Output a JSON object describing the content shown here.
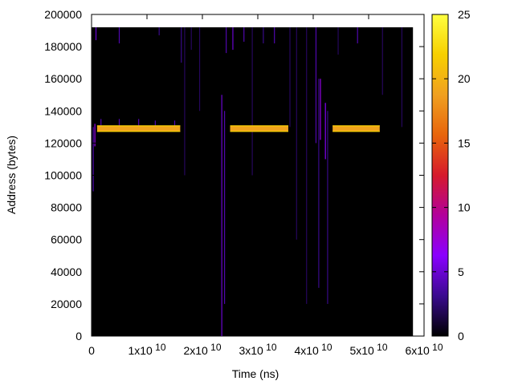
{
  "chart_data": {
    "type": "heatmap",
    "title": "",
    "xlabel": "Time (ns)",
    "ylabel": "Address (bytes)",
    "xlim": [
      0,
      60000000000
    ],
    "ylim": [
      0,
      200000
    ],
    "x_ticks": [
      {
        "value": 0,
        "base": "0",
        "exp": ""
      },
      {
        "value": 10000000000,
        "base": "1x10",
        "exp": "10"
      },
      {
        "value": 20000000000,
        "base": "2x10",
        "exp": "10"
      },
      {
        "value": 30000000000,
        "base": "3x10",
        "exp": "10"
      },
      {
        "value": 40000000000,
        "base": "4x10",
        "exp": "10"
      },
      {
        "value": 50000000000,
        "base": "5x10",
        "exp": "10"
      },
      {
        "value": 60000000000,
        "base": "6x10",
        "exp": "10"
      }
    ],
    "y_ticks": [
      {
        "value": 0,
        "label": "0"
      },
      {
        "value": 20000,
        "label": "20000"
      },
      {
        "value": 40000,
        "label": "40000"
      },
      {
        "value": 60000,
        "label": "60000"
      },
      {
        "value": 80000,
        "label": "80000"
      },
      {
        "value": 100000,
        "label": "100000"
      },
      {
        "value": 120000,
        "label": "120000"
      },
      {
        "value": 140000,
        "label": "140000"
      },
      {
        "value": 160000,
        "label": "160000"
      },
      {
        "value": 180000,
        "label": "180000"
      },
      {
        "value": 200000,
        "label": "200000"
      }
    ],
    "colorbar": {
      "range": [
        0,
        25
      ],
      "ticks": [
        {
          "value": 0,
          "label": "0"
        },
        {
          "value": 5,
          "label": "5"
        },
        {
          "value": 10,
          "label": "10"
        },
        {
          "value": 15,
          "label": "15"
        },
        {
          "value": 20,
          "label": "20"
        },
        {
          "value": 25,
          "label": "25"
        }
      ],
      "palette": [
        "#000000",
        "#3a0a8f",
        "#8a00ff",
        "#b2009c",
        "#d61a2c",
        "#e8650c",
        "#f0a020",
        "#f7d000",
        "#ffff40"
      ]
    },
    "heatmap_extent": {
      "x": [
        0,
        58000000000
      ],
      "y": [
        0,
        192000
      ]
    },
    "background_value": 0,
    "bands": [
      {
        "x": [
          1000000000,
          16000000000
        ],
        "y": [
          127000,
          131000
        ],
        "value": 19
      },
      {
        "x": [
          25000000000,
          35500000000
        ],
        "y": [
          127000,
          131000
        ],
        "value": 19
      },
      {
        "x": [
          43500000000,
          52000000000
        ],
        "y": [
          127000,
          131000
        ],
        "value": 19
      }
    ],
    "streaks": [
      {
        "x": 600000000,
        "y": [
          118000,
          132000
        ],
        "value": 7
      },
      {
        "x": 300000000,
        "y": [
          90000,
          130000
        ],
        "value": 4
      },
      {
        "x": 800000000,
        "y": [
          184000,
          192000
        ],
        "value": 5
      },
      {
        "x": 1700000000,
        "y": [
          128000,
          135000
        ],
        "value": 4
      },
      {
        "x": 5000000000,
        "y": [
          128000,
          135000
        ],
        "value": 4
      },
      {
        "x": 5000000000,
        "y": [
          182000,
          192000
        ],
        "value": 4
      },
      {
        "x": 8500000000,
        "y": [
          128000,
          135000
        ],
        "value": 4
      },
      {
        "x": 11500000000,
        "y": [
          129000,
          134000
        ],
        "value": 4
      },
      {
        "x": 12200000000,
        "y": [
          187000,
          192000
        ],
        "value": 3
      },
      {
        "x": 15000000000,
        "y": [
          128000,
          134000
        ],
        "value": 4
      },
      {
        "x": 16200000000,
        "y": [
          170000,
          192000
        ],
        "value": 3
      },
      {
        "x": 16800000000,
        "y": [
          100000,
          192000
        ],
        "value": 2
      },
      {
        "x": 18000000000,
        "y": [
          178000,
          192000
        ],
        "value": 2
      },
      {
        "x": 19500000000,
        "y": [
          140000,
          192000
        ],
        "value": 2
      },
      {
        "x": 23500000000,
        "y": [
          0,
          150000
        ],
        "value": 5
      },
      {
        "x": 24000000000,
        "y": [
          20000,
          140000
        ],
        "value": 4
      },
      {
        "x": 24300000000,
        "y": [
          176000,
          192000
        ],
        "value": 4
      },
      {
        "x": 25500000000,
        "y": [
          178000,
          192000
        ],
        "value": 5
      },
      {
        "x": 27500000000,
        "y": [
          183000,
          192000
        ],
        "value": 4
      },
      {
        "x": 29000000000,
        "y": [
          100000,
          192000
        ],
        "value": 2
      },
      {
        "x": 31000000000,
        "y": [
          182000,
          192000
        ],
        "value": 3
      },
      {
        "x": 33000000000,
        "y": [
          182000,
          192000
        ],
        "value": 4
      },
      {
        "x": 35800000000,
        "y": [
          130000,
          192000
        ],
        "value": 2
      },
      {
        "x": 37000000000,
        "y": [
          60000,
          192000
        ],
        "value": 2
      },
      {
        "x": 38800000000,
        "y": [
          20000,
          192000
        ],
        "value": 2
      },
      {
        "x": 40500000000,
        "y": [
          120000,
          192000
        ],
        "value": 4
      },
      {
        "x": 41000000000,
        "y": [
          30000,
          160000
        ],
        "value": 3
      },
      {
        "x": 41300000000,
        "y": [
          122000,
          160000
        ],
        "value": 7
      },
      {
        "x": 42200000000,
        "y": [
          110000,
          145000
        ],
        "value": 6
      },
      {
        "x": 42600000000,
        "y": [
          20000,
          140000
        ],
        "value": 3
      },
      {
        "x": 44500000000,
        "y": [
          175000,
          192000
        ],
        "value": 2
      },
      {
        "x": 48000000000,
        "y": [
          182000,
          192000
        ],
        "value": 4
      },
      {
        "x": 52500000000,
        "y": [
          150000,
          192000
        ],
        "value": 2
      },
      {
        "x": 56000000000,
        "y": [
          130000,
          192000
        ],
        "value": 2
      }
    ]
  }
}
